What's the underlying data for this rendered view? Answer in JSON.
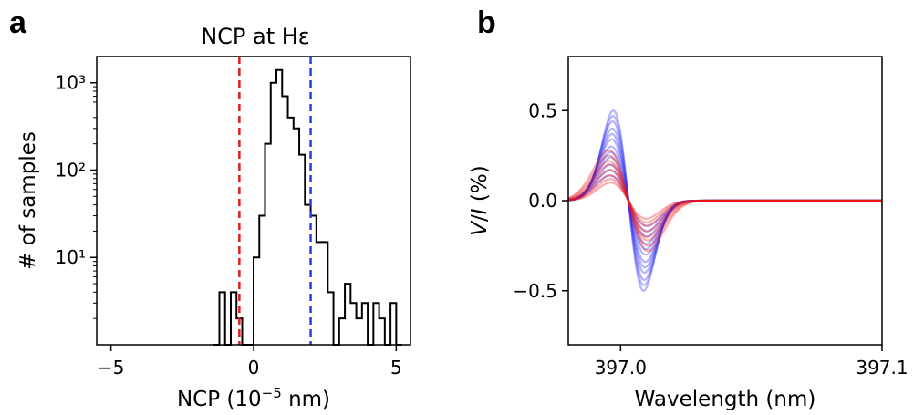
{
  "panel_letters": [
    "a",
    "b"
  ],
  "chart_data": [
    {
      "type": "histogram",
      "title": "NCP at Hε",
      "xlabel": "NCP (10⁻⁵ nm)",
      "ylabel": "# of samples",
      "xlim": [
        -5.5,
        5.5
      ],
      "ylim_log10": [
        0,
        3.3
      ],
      "yscale": "log",
      "xticks": [
        -5,
        0,
        5
      ],
      "xtick_labels": [
        "−5",
        "0",
        "5"
      ],
      "yticks": [
        1,
        2,
        3
      ],
      "ytick_labels": [
        "10¹",
        "10²",
        "10³"
      ],
      "grid": false,
      "bin_width": 0.2,
      "bins_start": -1.4,
      "counts": [
        1,
        4,
        1,
        4,
        2,
        1,
        1,
        10,
        30,
        200,
        1000,
        1400,
        700,
        400,
        300,
        150,
        40,
        30,
        15,
        15,
        4,
        1,
        2,
        5,
        3,
        2,
        3,
        1,
        3,
        2,
        1,
        3,
        1
      ],
      "vlines": [
        {
          "x": -0.5,
          "color": "#e41a1c",
          "style": "dashed"
        },
        {
          "x": 2.0,
          "color": "#1f3fe8",
          "style": "dashed"
        }
      ],
      "step_color": "#000000"
    },
    {
      "type": "line",
      "title": "",
      "xlabel": "Wavelength (nm)",
      "ylabel": "V/I (%)",
      "xlim": [
        396.98,
        397.1
      ],
      "ylim": [
        -0.8,
        0.8
      ],
      "xticks": [
        397.0,
        397.1
      ],
      "xtick_labels": [
        "397.0",
        "397.1"
      ],
      "yticks": [
        0.5,
        0.0,
        -0.5
      ],
      "ytick_labels": [
        "0.5",
        "0.0",
        "−0.5"
      ],
      "grid": false,
      "series_groups": [
        {
          "color": "#2b2bf0",
          "amplitudes": [
            0.5,
            0.47,
            0.44,
            0.4,
            0.37,
            0.34,
            0.3,
            0.27,
            0.24,
            0.2,
            0.17,
            0.14
          ]
        },
        {
          "color": "#f01414",
          "amplitudes": [
            0.1,
            0.12,
            0.14,
            0.17,
            0.2,
            0.22,
            0.25,
            0.28
          ]
        }
      ]
    }
  ]
}
